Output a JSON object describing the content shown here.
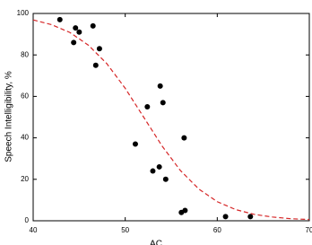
{
  "chart_data": [
    {
      "type": "scatter",
      "color": "#000000",
      "x": [
        42.9,
        44.4,
        44.6,
        45.0,
        46.5,
        47.2,
        46.8,
        51.1,
        52.4,
        53.0,
        53.7,
        53.8,
        54.1,
        54.4,
        56.4,
        56.1,
        56.5,
        60.9,
        63.6
      ],
      "values": [
        97,
        86,
        93,
        91,
        94,
        83,
        75,
        37,
        55,
        24,
        26,
        65,
        57,
        20,
        40,
        4,
        5,
        2,
        2
      ],
      "x_label": "AC",
      "y_label": "Speech Intelligibility, %",
      "xlim": [
        40,
        70
      ],
      "xticks": [
        40,
        50,
        60,
        70
      ],
      "ylim": [
        0,
        100
      ],
      "yticks": [
        0,
        20,
        40,
        60,
        80,
        100
      ]
    },
    {
      "type": "line",
      "color": "#d62728",
      "dashed": true,
      "x": [
        40,
        42,
        44,
        46,
        48,
        50,
        52,
        54,
        56,
        58,
        60,
        62,
        64,
        66,
        68,
        70
      ],
      "values": [
        96.9,
        94.6,
        90.8,
        84.7,
        75.8,
        63.9,
        50,
        36.1,
        24.2,
        15.3,
        9.2,
        5.4,
        3.1,
        1.8,
        1.0,
        0.6
      ]
    }
  ]
}
